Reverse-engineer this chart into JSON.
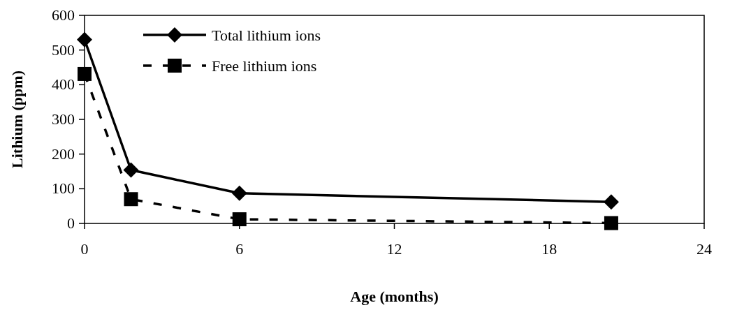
{
  "chart_data": {
    "type": "line",
    "xlabel": "Age (months)",
    "ylabel": "Lithium (ppm)",
    "xlim": [
      0,
      24
    ],
    "xticks": [
      0,
      6,
      12,
      18,
      24
    ],
    "ylim": [
      0,
      600
    ],
    "yticks": [
      0,
      100,
      200,
      300,
      400,
      500,
      600
    ],
    "grid": false,
    "legend": "top left",
    "series": [
      {
        "name": "Total lithium ions",
        "color": "#000000",
        "x": [
          0,
          1.8,
          6,
          20.4
        ],
        "values": [
          530,
          154,
          87,
          62
        ],
        "marker": "diamond",
        "line_style": "solid"
      },
      {
        "name": "Free lithium ions",
        "color": "#000000",
        "x": [
          0,
          1.8,
          6,
          20.4
        ],
        "values": [
          431,
          70,
          12,
          1
        ],
        "marker": "square",
        "line_style": "dashed"
      }
    ]
  }
}
